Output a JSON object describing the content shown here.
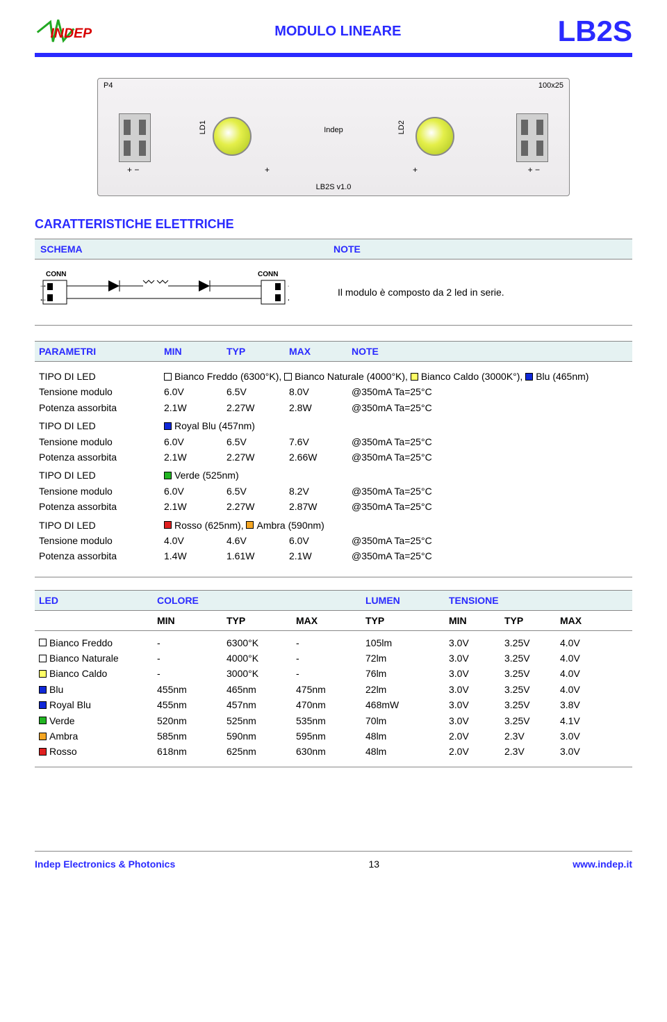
{
  "header": {
    "title": "MODULO LINEARE",
    "product": "LB2S",
    "logo_text": "INDEP",
    "logo_red": "#d80000",
    "logo_green": "#22a822"
  },
  "pcb": {
    "p4": "P4",
    "size": "100x25",
    "center": "Indep",
    "bottom": "LB2S v1.0",
    "ld1": "LD1",
    "ld2": "LD2",
    "pm_l": "+    −",
    "pm_c1": "+",
    "pm_c2": "+",
    "pm_r": "+    −"
  },
  "section_title": "CARATTERISTICHE ELETTRICHE",
  "schema_note": {
    "schema_label": "SCHEMA",
    "note_label": "NOTE",
    "conn": "CONN",
    "note_text": "Il modulo è composto da 2 led in serie."
  },
  "param_head": {
    "p": "PARAMETRI",
    "min": "MIN",
    "typ": "TYP",
    "max": "MAX",
    "note": "NOTE"
  },
  "colors": {
    "bf": "#ffffff",
    "bn": "#ffffff",
    "bc": "#ffff66",
    "blu": "#1028d8",
    "rb": "#1028d8",
    "verde": "#22b522",
    "ambra": "#f5a623",
    "rosso": "#e02020"
  },
  "groups": [
    {
      "type_label": "TIPO DI LED",
      "chips": [
        {
          "c": "bf",
          "t": "Bianco Freddo (6300°K),"
        },
        {
          "c": "bn",
          "t": "Bianco Naturale (4000°K),"
        },
        {
          "c": "bc",
          "t": "Bianco Caldo (3000K°),"
        },
        {
          "c": "blu",
          "t": "Blu (465nm)"
        }
      ],
      "rows": [
        {
          "p": "Tensione modulo",
          "min": "6.0V",
          "typ": "6.5V",
          "max": "8.0V",
          "note": "@350mA Ta=25°C"
        },
        {
          "p": "Potenza assorbita",
          "min": "2.1W",
          "typ": "2.27W",
          "max": "2.8W",
          "note": "@350mA Ta=25°C"
        }
      ]
    },
    {
      "type_label": "TIPO DI LED",
      "chips": [
        {
          "c": "rb",
          "t": "Royal Blu (457nm)"
        }
      ],
      "rows": [
        {
          "p": "Tensione modulo",
          "min": "6.0V",
          "typ": "6.5V",
          "max": "7.6V",
          "note": "@350mA Ta=25°C"
        },
        {
          "p": "Potenza assorbita",
          "min": "2.1W",
          "typ": "2.27W",
          "max": "2.66W",
          "note": "@350mA Ta=25°C"
        }
      ]
    },
    {
      "type_label": "TIPO DI LED",
      "chips": [
        {
          "c": "verde",
          "t": "Verde (525nm)"
        }
      ],
      "rows": [
        {
          "p": "Tensione modulo",
          "min": "6.0V",
          "typ": "6.5V",
          "max": "8.2V",
          "note": "@350mA Ta=25°C"
        },
        {
          "p": "Potenza assorbita",
          "min": "2.1W",
          "typ": "2.27W",
          "max": "2.87W",
          "note": "@350mA Ta=25°C"
        }
      ]
    },
    {
      "type_label": "TIPO DI LED",
      "chips": [
        {
          "c": "rosso",
          "t": "Rosso (625nm),"
        },
        {
          "c": "ambra",
          "t": "Ambra (590nm)"
        }
      ],
      "rows": [
        {
          "p": "Tensione modulo",
          "min": "4.0V",
          "typ": "4.6V",
          "max": "6.0V",
          "note": "@350mA Ta=25°C"
        },
        {
          "p": "Potenza assorbita",
          "min": "1.4W",
          "typ": "1.61W",
          "max": "2.1W",
          "note": "@350mA  Ta=25°C"
        }
      ]
    }
  ],
  "led_head": {
    "led": "LED",
    "colore": "COLORE",
    "lumen": "LUMEN",
    "tensione": "TENSIONE"
  },
  "led_sub": {
    "min": "MIN",
    "typ": "TYP",
    "max": "MAX"
  },
  "led_rows": [
    {
      "c": "bf",
      "name": "Bianco Freddo",
      "min": "-",
      "typ": "6300°K",
      "max": "-",
      "lt": "105lm",
      "vmin": "3.0V",
      "vtyp": "3.25V",
      "vmax": "4.0V"
    },
    {
      "c": "bn",
      "name": "Bianco Naturale",
      "min": "-",
      "typ": "4000°K",
      "max": "-",
      "lt": "72lm",
      "vmin": "3.0V",
      "vtyp": "3.25V",
      "vmax": "4.0V"
    },
    {
      "c": "bc",
      "name": "Bianco Caldo",
      "min": "-",
      "typ": "3000°K",
      "max": "-",
      "lt": "76lm",
      "vmin": "3.0V",
      "vtyp": "3.25V",
      "vmax": "4.0V"
    },
    {
      "c": "blu",
      "name": "Blu",
      "min": "455nm",
      "typ": "465nm",
      "max": "475nm",
      "lt": "22lm",
      "vmin": "3.0V",
      "vtyp": "3.25V",
      "vmax": "4.0V"
    },
    {
      "c": "rb",
      "name": "Royal Blu",
      "min": "455nm",
      "typ": "457nm",
      "max": "470nm",
      "lt": "468mW",
      "vmin": "3.0V",
      "vtyp": "3.25V",
      "vmax": "3.8V"
    },
    {
      "c": "verde",
      "name": "Verde",
      "min": "520nm",
      "typ": "525nm",
      "max": "535nm",
      "lt": "70lm",
      "vmin": "3.0V",
      "vtyp": "3.25V",
      "vmax": "4.1V"
    },
    {
      "c": "ambra",
      "name": "Ambra",
      "min": "585nm",
      "typ": "590nm",
      "max": "595nm",
      "lt": "48lm",
      "vmin": "2.0V",
      "vtyp": "2.3V",
      "vmax": "3.0V"
    },
    {
      "c": "rosso",
      "name": "Rosso",
      "min": "618nm",
      "typ": "625nm",
      "max": "630nm",
      "lt": "48lm",
      "vmin": "2.0V",
      "vtyp": "2.3V",
      "vmax": "3.0V"
    }
  ],
  "footer": {
    "left": "Indep Electronics & Photonics",
    "page": "13",
    "right": "www.indep.it"
  }
}
